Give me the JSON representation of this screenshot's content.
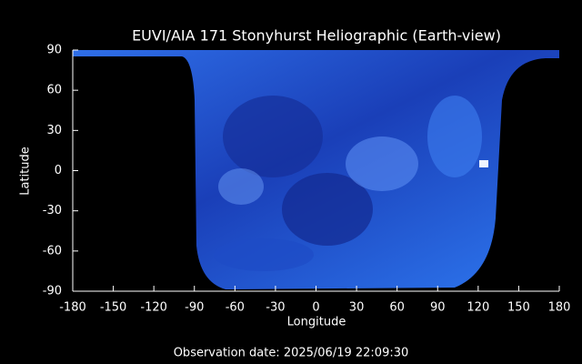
{
  "chart_data": {
    "type": "map",
    "title": "EUVI/AIA 171 Stonyhurst Heliographic (Earth-view)",
    "xlabel": "Longitude",
    "ylabel": "Latitude",
    "footer": "Observation date: 2025/06/19 22:09:30",
    "xlim": [
      -180,
      180
    ],
    "ylim": [
      -90,
      90
    ],
    "xticks": [
      -180,
      -150,
      -120,
      -90,
      -60,
      -30,
      0,
      30,
      60,
      90,
      120,
      150,
      180
    ],
    "yticks": [
      -90,
      -60,
      -30,
      0,
      30,
      60,
      90
    ]
  }
}
